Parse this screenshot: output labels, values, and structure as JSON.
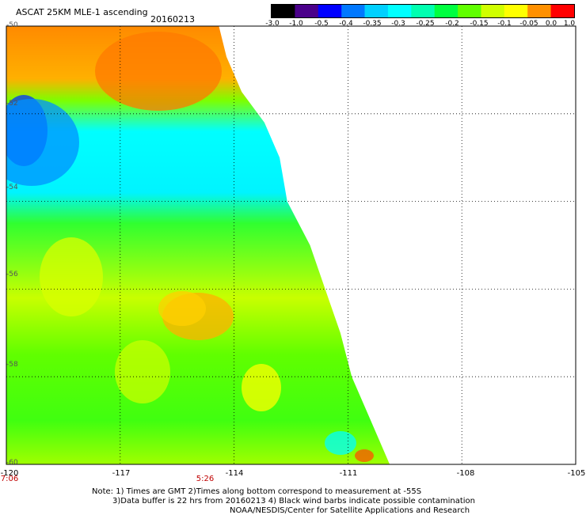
{
  "header": {
    "title": "ASCAT 25KM MLE-1 ascending",
    "date": "20160213"
  },
  "colorbar": {
    "labels": [
      "-3.0",
      "-1.0",
      "-0.5",
      "-0.4",
      "-0.35",
      "-0.3",
      "-0.25",
      "-0.2",
      "-0.15",
      "-0.1",
      "-0.05",
      "0.0",
      "1.0"
    ],
    "colors": [
      "#000000",
      "#4a008a",
      "#0000ff",
      "#0078ff",
      "#00d0ff",
      "#00ffff",
      "#00ffb0",
      "#00ff40",
      "#60ff00",
      "#d0ff00",
      "#ffff00",
      "#ff9000",
      "#ff0000"
    ]
  },
  "map": {
    "lat_labels": [
      "-50",
      "-52",
      "-54",
      "-56",
      "-58",
      "-60"
    ],
    "lon_labels": [
      "-120",
      "-117",
      "-114",
      "-111",
      "-108",
      "-105"
    ],
    "time_labels": [
      "7:06",
      "5:26"
    ],
    "lat_range": [
      -60,
      -50
    ],
    "lon_range": [
      -120,
      -105
    ],
    "swath_edge": [
      [
        -50.0,
        -114.4
      ],
      [
        -50.7,
        -114.2
      ],
      [
        -51.5,
        -113.8
      ],
      [
        -52.2,
        -113.2
      ],
      [
        -53.0,
        -112.8
      ],
      [
        -54.0,
        -112.6
      ],
      [
        -55.0,
        -112.0
      ],
      [
        -56.0,
        -111.6
      ],
      [
        -57.0,
        -111.2
      ],
      [
        -58.0,
        -110.9
      ],
      [
        -59.0,
        -110.4
      ],
      [
        -60.0,
        -109.9
      ]
    ]
  },
  "notes": [
    "Note: 1) Times are GMT 2)Times along bottom correspond to measurement at -55S",
    "3)Data buffer is 22 hrs from 20160213 4) Black wind barbs indicate possible contamination",
    "NOAA/NESDIS/Center for Satellite Applications and Research"
  ]
}
